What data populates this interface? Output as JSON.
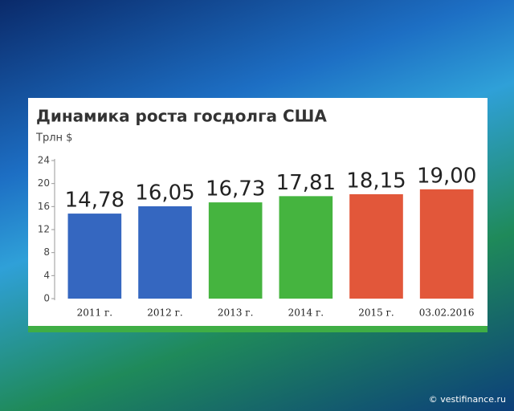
{
  "chart_data": {
    "type": "bar",
    "title": "Динамика роста госдолга США",
    "y_label": "Трлн $",
    "source": "© vestifinance.ru",
    "categories": [
      "2011 г.",
      "2012 г.",
      "2013 г.",
      "2014 г.",
      "2015 г.",
      "03.02.2016"
    ],
    "values": [
      14.78,
      16.05,
      16.73,
      17.81,
      18.15,
      19.0
    ],
    "value_labels": [
      "14,78",
      "16,05",
      "16,73",
      "17,81",
      "18,15",
      "19,00"
    ],
    "colors": [
      "#3567c0",
      "#3567c0",
      "#45b43f",
      "#45b43f",
      "#e2573a",
      "#e2573a"
    ],
    "ylim": [
      0,
      24
    ],
    "yticks": [
      0,
      4,
      8,
      12,
      16,
      20,
      24
    ],
    "grid": false
  }
}
